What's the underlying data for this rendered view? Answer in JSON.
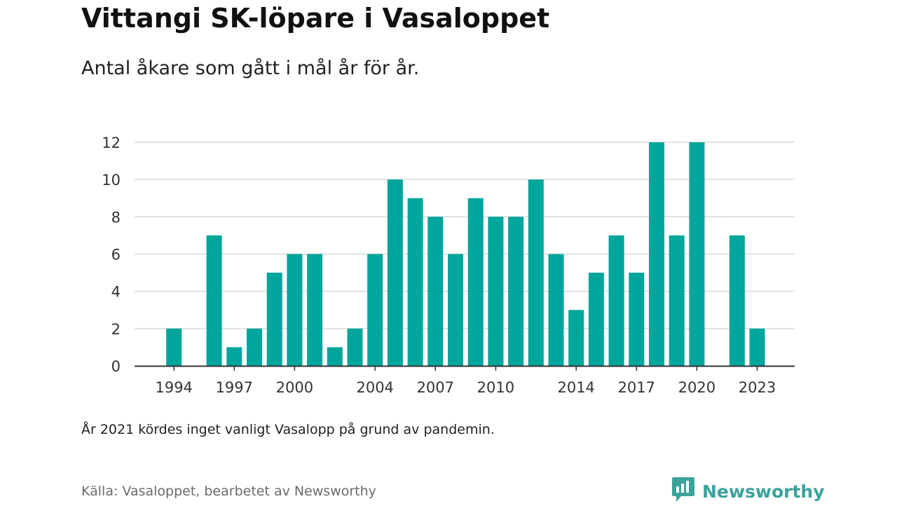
{
  "title": "Vittangi SK-löpare i Vasaloppet",
  "subtitle": "Antal åkare som gått i mål år för år.",
  "note": "År 2021 kördes inget vanligt Vasalopp på grund av pandemin.",
  "source": "Källa: Vasaloppet, bearbetet av Newsworthy",
  "brand": {
    "name": "Newsworthy",
    "icon": "newsworthy-logo-icon",
    "color": "#3aa39a"
  },
  "colors": {
    "bar": "#00a59b",
    "grid": "#d9d9d9",
    "axis": "#333333"
  },
  "chart_data": {
    "type": "bar",
    "title": "",
    "xlabel": "",
    "ylabel": "",
    "ylim": [
      0,
      12
    ],
    "yticks": [
      0,
      2,
      4,
      6,
      8,
      10,
      12
    ],
    "xticks": [
      1994,
      1997,
      2000,
      2004,
      2007,
      2010,
      2014,
      2017,
      2020,
      2023
    ],
    "xrange": [
      1992,
      2024
    ],
    "grid": true,
    "legend": "none",
    "categories": [
      1994,
      1995,
      1996,
      1997,
      1998,
      1999,
      2000,
      2001,
      2002,
      2003,
      2004,
      2005,
      2006,
      2007,
      2008,
      2009,
      2010,
      2011,
      2012,
      2013,
      2014,
      2015,
      2016,
      2017,
      2018,
      2019,
      2020,
      2021,
      2022,
      2023
    ],
    "values": [
      2,
      0,
      7,
      1,
      2,
      5,
      6,
      6,
      1,
      2,
      6,
      10,
      9,
      8,
      6,
      9,
      8,
      8,
      10,
      6,
      3,
      5,
      7,
      5,
      12,
      7,
      12,
      0,
      7,
      2
    ]
  }
}
